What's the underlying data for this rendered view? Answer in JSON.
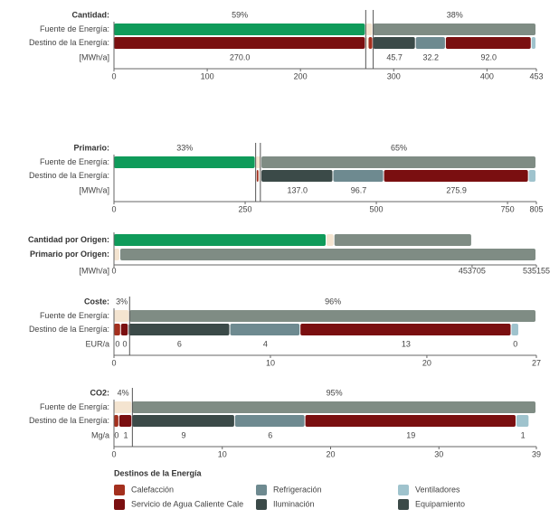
{
  "panels": [
    {
      "title": "Cantidad:",
      "unit": "[MWh/a]",
      "xlim": [
        0,
        453
      ],
      "xticks": [
        0,
        100,
        200,
        300,
        400,
        453
      ],
      "markers": [
        270,
        278
      ],
      "rows": [
        {
          "name": "Fuente de Energía:",
          "segments": [
            {
              "value": 270,
              "color": "#0f9b5a",
              "label": "59%"
            },
            {
              "value": 8,
              "color": "#f4e4d0"
            },
            {
              "value": 175,
              "color": "#7f8c84",
              "label": "38%"
            }
          ]
        },
        {
          "name": "Destino de la Energía:",
          "segments": [
            {
              "value": 270,
              "color": "#7a0f10",
              "label": "270.0"
            },
            {
              "value": 3,
              "color": "#f4e4d0"
            },
            {
              "value": 5,
              "color": "#a4301e"
            },
            {
              "value": 45.7,
              "color": "#3b4a48",
              "label": "45.7"
            },
            {
              "value": 32.2,
              "color": "#6e8a90",
              "label": "32.2"
            },
            {
              "value": 92,
              "color": "#7a0f10",
              "label": "92.0"
            },
            {
              "value": 5.1,
              "color": "#9fc3cd"
            }
          ]
        }
      ]
    },
    {
      "title": "Primario:",
      "unit": "[MWh/a]",
      "xlim": [
        0,
        805
      ],
      "xticks": [
        0,
        250,
        500,
        750,
        805
      ],
      "markers": [
        270,
        279
      ],
      "rows": [
        {
          "name": "Fuente de Energía:",
          "segments": [
            {
              "value": 270,
              "color": "#0f9b5a",
              "label": "33%"
            },
            {
              "value": 11,
              "color": "#f4e4d0"
            },
            {
              "value": 524,
              "color": "#7f8c84",
              "label": "65%"
            }
          ]
        },
        {
          "name": "Destino de la Energía:",
          "segments": [
            {
              "value": 272,
              "color": "#ffffff"
            },
            {
              "value": 5,
              "color": "#a4301e"
            },
            {
              "value": 4,
              "color": "#f4e4d0"
            },
            {
              "value": 137,
              "color": "#3b4a48",
              "label": "137.0"
            },
            {
              "value": 96.7,
              "color": "#6e8a90",
              "label": "96.7"
            },
            {
              "value": 275.9,
              "color": "#7a0f10",
              "label": "275.9"
            },
            {
              "value": 14.4,
              "color": "#9fc3cd"
            }
          ]
        }
      ]
    },
    {
      "unit": "[MWh/a]",
      "xlim": [
        0,
        535155
      ],
      "xticks": [
        0,
        453705,
        535155
      ],
      "rows": [
        {
          "name": "Cantidad por Origen:",
          "segments": [
            {
              "value": 269300,
              "color": "#0f9b5a"
            },
            {
              "value": 10000,
              "color": "#f4e4d0"
            },
            {
              "value": 174405,
              "color": "#7f8c84"
            }
          ]
        },
        {
          "name": "Primario por Origen:",
          "segments": [
            {
              "value": 8000,
              "color": "#f4e4d0"
            },
            {
              "value": 527155,
              "color": "#7f8c84"
            }
          ]
        }
      ]
    },
    {
      "title": "Coste:",
      "unit": "EUR/a",
      "xlim": [
        0,
        27
      ],
      "xticks": [
        0,
        10,
        20,
        27
      ],
      "markers": [
        1
      ],
      "rows": [
        {
          "name": "Fuente de Energía:",
          "segments": [
            {
              "value": 1,
              "color": "#f4e4d0",
              "label": "3%"
            },
            {
              "value": 26,
              "color": "#7f8c84",
              "label": "96%"
            }
          ]
        },
        {
          "name": "Destino de la Energía:",
          "segments": [
            {
              "value": 0.45,
              "color": "#a4301e",
              "label": "0"
            },
            {
              "value": 0.49,
              "color": "#7a0f10",
              "label": "0"
            },
            {
              "value": 6.49,
              "color": "#3b4a48",
              "label": "6"
            },
            {
              "value": 4.49,
              "color": "#6e8a90",
              "label": "4"
            },
            {
              "value": 13.49,
              "color": "#7a0f10",
              "label": "13"
            },
            {
              "value": 0.49,
              "color": "#9fc3cd",
              "label": "0"
            }
          ]
        }
      ]
    },
    {
      "title": "CO2:",
      "unit": "Mg/a",
      "xlim": [
        0,
        39
      ],
      "xticks": [
        0,
        10,
        20,
        30,
        39
      ],
      "markers": [
        1.7
      ],
      "rows": [
        {
          "name": "Fuente de Energía:",
          "segments": [
            {
              "value": 1.7,
              "color": "#f4e4d0",
              "label": "4%"
            },
            {
              "value": 37.3,
              "color": "#7f8c84",
              "label": "95%"
            }
          ]
        },
        {
          "name": "Destino de la Energía:",
          "segments": [
            {
              "value": 0.49,
              "color": "#a4301e",
              "label": "0"
            },
            {
              "value": 1.2,
              "color": "#7a0f10",
              "label": "1"
            },
            {
              "value": 9.49,
              "color": "#3b4a48",
              "label": "9"
            },
            {
              "value": 6.49,
              "color": "#6e8a90",
              "label": "6"
            },
            {
              "value": 19.49,
              "color": "#7a0f10",
              "label": "19"
            },
            {
              "value": 1.2,
              "color": "#9fc3cd",
              "label": "1"
            }
          ]
        }
      ]
    }
  ],
  "legend": {
    "title": "Destinos de la Energía",
    "items": [
      {
        "name": "Calefacción",
        "color": "#a4301e"
      },
      {
        "name": "Refrigeración",
        "color": "#6e8a90"
      },
      {
        "name": "Ventiladores",
        "color": "#9fc3cd"
      },
      {
        "name": "Servicio de Agua Caliente Cale",
        "color": "#7a0f10"
      },
      {
        "name": "Iluminación",
        "color": "#3b4a48"
      },
      {
        "name": "Equipamiento",
        "color": "#3b4a48"
      }
    ]
  }
}
